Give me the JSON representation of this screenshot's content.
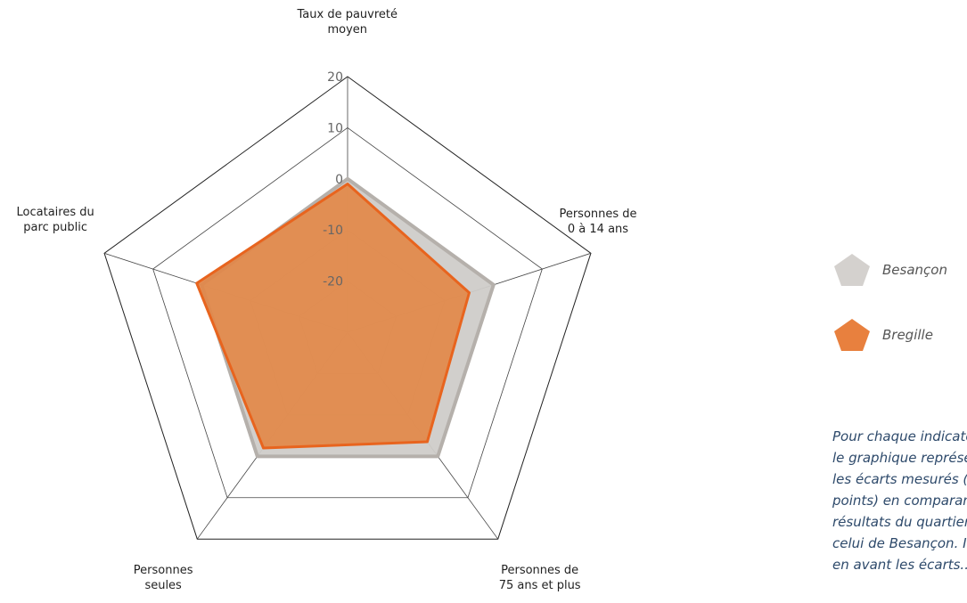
{
  "chart_data": {
    "type": "radar",
    "axes": [
      {
        "lines": [
          "Taux de pauvreté",
          "moyen"
        ]
      },
      {
        "lines": [
          "Personnes de",
          "0 à 14 ans"
        ]
      },
      {
        "lines": [
          "Personnes de",
          "75 ans et plus"
        ]
      },
      {
        "lines": [
          "Personnes",
          "seules"
        ]
      },
      {
        "lines": [
          "Locataires du",
          "parc public"
        ]
      }
    ],
    "rlim": [
      -30,
      20
    ],
    "ticks": [
      {
        "value": 20,
        "label": "20"
      },
      {
        "value": 10,
        "label": "10"
      },
      {
        "value": 0,
        "label": "0"
      },
      {
        "value": -10,
        "label": "-10"
      },
      {
        "value": -20,
        "label": "-20"
      }
    ],
    "series": [
      {
        "name": "Besançon",
        "values": [
          0,
          0,
          0,
          0,
          0
        ],
        "fill": "#cfccc9",
        "stroke": "#b5b0ab"
      },
      {
        "name": "Bregille",
        "values": [
          -1,
          -5,
          -3.5,
          -2,
          1
        ],
        "fill": "#e28646",
        "stroke": "#e8641e"
      }
    ],
    "legend_position": "right"
  },
  "note": {
    "lines": [
      "Pour chaque indicateur,",
      "le graphique représente",
      "les écarts mesurés (en",
      "points) en comparant les",
      "résultats du quartier à",
      "celui de Besançon. Il met",
      "en avant les écarts..."
    ]
  }
}
